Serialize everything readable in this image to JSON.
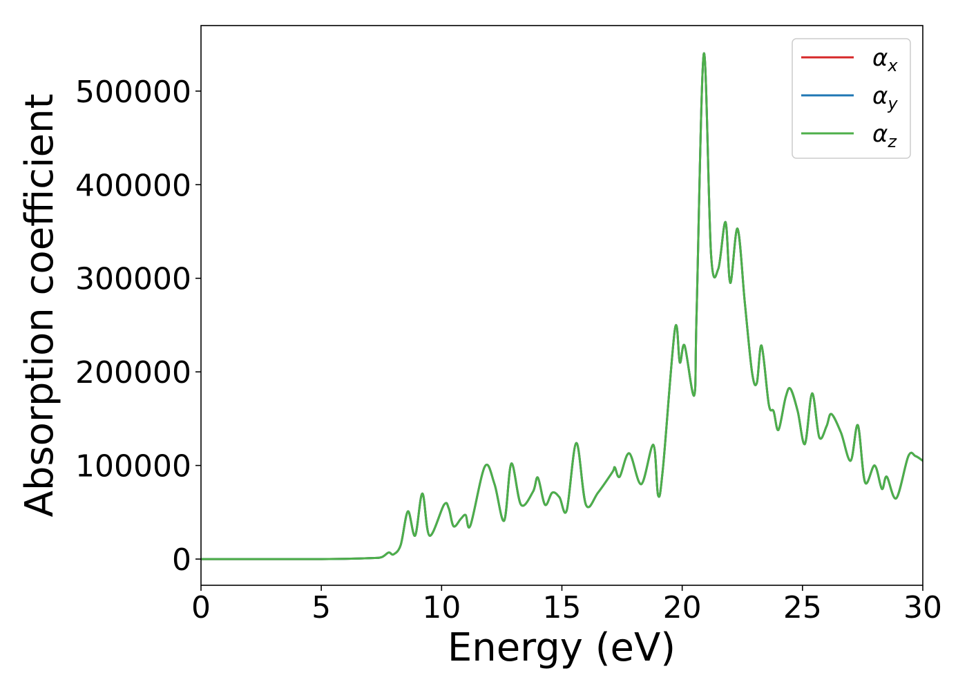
{
  "chart_data": {
    "type": "line",
    "title": "",
    "xlabel": "Energy (eV)",
    "ylabel": "Absorption coefficient",
    "xlim": [
      0,
      30
    ],
    "ylim": [
      -28000,
      570000
    ],
    "xticks": [
      0,
      5,
      10,
      15,
      20,
      25,
      30
    ],
    "yticks": [
      0,
      100000,
      200000,
      300000,
      400000,
      500000
    ],
    "xtick_labels": [
      "0",
      "5",
      "10",
      "15",
      "20",
      "25",
      "30"
    ],
    "ytick_labels": [
      "0",
      "100000",
      "200000",
      "300000",
      "400000",
      "500000"
    ],
    "grid": false,
    "legend_position": "top-right",
    "series": [
      {
        "name": "α_x",
        "label_base": "α",
        "label_sub": "x",
        "color": "#d62728"
      },
      {
        "name": "α_y",
        "label_base": "α",
        "label_sub": "y",
        "color": "#1f77b4"
      },
      {
        "name": "α_z",
        "label_base": "α",
        "label_sub": "z",
        "color": "#4daf4a"
      }
    ],
    "x": [
      0,
      5,
      7,
      7.5,
      7.8,
      8.0,
      8.3,
      8.6,
      8.9,
      9.2,
      9.5,
      10.1,
      10.3,
      10.5,
      10.8,
      11.0,
      11.2,
      11.8,
      12.2,
      12.6,
      12.9,
      13.3,
      13.8,
      14.0,
      14.3,
      14.6,
      14.9,
      15.2,
      15.6,
      16.0,
      16.5,
      17.1,
      17.2,
      17.4,
      17.8,
      18.3,
      18.8,
      19.0,
      19.2,
      19.7,
      19.9,
      20.1,
      20.5,
      20.6,
      20.9,
      21.2,
      21.5,
      21.8,
      22.0,
      22.3,
      22.6,
      22.9,
      23.1,
      23.3,
      23.6,
      23.8,
      24.0,
      24.3,
      24.5,
      24.8,
      25.1,
      25.4,
      25.7,
      26.0,
      26.2,
      26.6,
      27.0,
      27.3,
      27.6,
      28.0,
      28.3,
      28.5,
      28.9,
      29.4,
      29.7,
      30.0
    ],
    "values": [
      0,
      0,
      1000,
      2000,
      7000,
      5000,
      15000,
      51000,
      25000,
      70000,
      25000,
      58000,
      54000,
      35000,
      43000,
      47000,
      36000,
      99000,
      80000,
      41000,
      102000,
      58000,
      72000,
      87000,
      58000,
      71000,
      66000,
      52000,
      124000,
      58000,
      71000,
      93000,
      98000,
      88000,
      113000,
      80000,
      122000,
      68000,
      97000,
      246000,
      210000,
      228000,
      175000,
      265000,
      540000,
      325000,
      310000,
      360000,
      295000,
      353000,
      275000,
      200000,
      188000,
      228000,
      165000,
      158000,
      138000,
      173000,
      182000,
      158000,
      123000,
      177000,
      130000,
      142000,
      155000,
      135000,
      105000,
      143000,
      82000,
      100000,
      75000,
      88000,
      65000,
      110000,
      110000,
      105000
    ]
  }
}
